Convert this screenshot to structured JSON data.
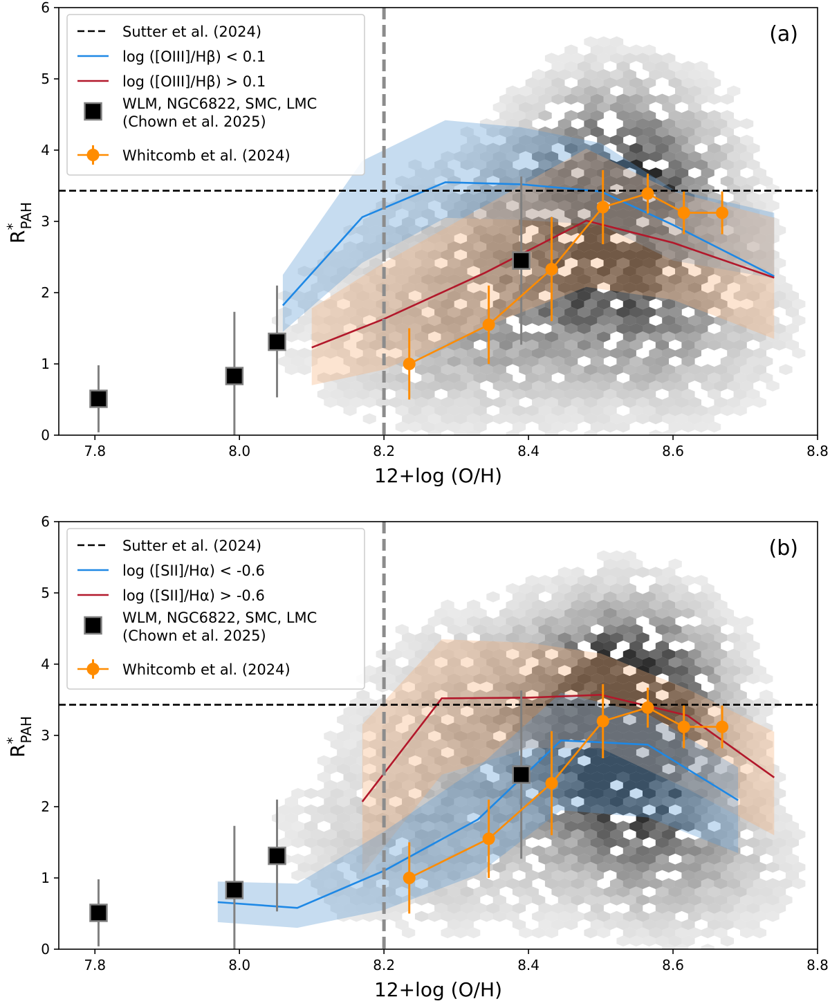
{
  "chart_data": [
    {
      "type": "line",
      "panel_label": "(a)",
      "xlabel": "12+log (O/H)",
      "ylabel_main": "R",
      "ylabel_sup": "*",
      "ylabel_sub": "PAH",
      "xlim": [
        7.75,
        8.8
      ],
      "ylim": [
        0,
        6
      ],
      "xticks": [
        "7.8",
        "8.0",
        "8.2",
        "8.4",
        "8.6",
        "8.8"
      ],
      "yticks": [
        "0",
        "1",
        "2",
        "3",
        "4",
        "5",
        "6"
      ],
      "grid": false,
      "legend_position": "top-left",
      "legend": [
        {
          "label": "Sutter et al. (2024)",
          "style": "dashed",
          "color": "#000000"
        },
        {
          "label": "log ([OIII]/Hβ) < 0.1",
          "style": "line",
          "color": "#1e88e5"
        },
        {
          "label": "log ([OIII]/Hβ) > 0.1",
          "style": "line",
          "color": "#b2182b"
        },
        {
          "label": "WLM, NGC6822, SMC, LMC",
          "label2": "(Chown et al. 2025)",
          "style": "square",
          "color": "#000000"
        },
        {
          "label": "Whitcomb et al. (2024)",
          "style": "errorbar",
          "color": "#ff8c00"
        }
      ],
      "reference_lines": {
        "horizontal_y": 3.43,
        "vertical_x": 8.2
      },
      "series": [
        {
          "name": "log ([OIII]/Hβ) < 0.1",
          "color": "#1e88e5",
          "band_color": "#5b9bd5",
          "x": [
            8.06,
            8.17,
            8.285,
            8.39,
            8.5,
            8.6,
            8.74
          ],
          "y": [
            1.82,
            3.06,
            3.55,
            3.52,
            3.42,
            2.95,
            2.23
          ],
          "band_lower": [
            1.45,
            2.42,
            3.05,
            3.02,
            2.95,
            2.45,
            2.2
          ],
          "band_upper": [
            2.25,
            3.85,
            4.42,
            4.32,
            4.1,
            3.45,
            3.12
          ]
        },
        {
          "name": "log ([OIII]/Hβ) > 0.1",
          "color": "#b2182b",
          "band_color": "#f6b27a",
          "x": [
            8.1,
            8.2,
            8.34,
            8.48,
            8.6,
            8.74
          ],
          "y": [
            1.23,
            1.63,
            2.28,
            3.01,
            2.7,
            2.21
          ],
          "band_lower": [
            0.7,
            0.92,
            1.52,
            2.08,
            1.9,
            1.35
          ],
          "band_upper": [
            1.78,
            2.42,
            3.22,
            4.02,
            3.42,
            3.05
          ]
        }
      ],
      "chown_points": {
        "x": [
          7.805,
          7.993,
          8.052,
          8.39
        ],
        "y": [
          0.51,
          0.83,
          1.31,
          2.45
        ],
        "err_low": [
          0.47,
          0.83,
          0.78,
          1.18
        ],
        "err_high": [
          0.47,
          0.9,
          0.79,
          1.18
        ]
      },
      "whitcomb_points": {
        "x": [
          8.235,
          8.345,
          8.432,
          8.503,
          8.565,
          8.615,
          8.668
        ],
        "y": [
          1.0,
          1.55,
          2.33,
          3.2,
          3.39,
          3.12,
          3.12
        ],
        "err_low": [
          0.5,
          0.55,
          0.73,
          0.52,
          0.28,
          0.3,
          0.3
        ],
        "err_high": [
          0.5,
          0.55,
          0.73,
          0.52,
          0.28,
          0.3,
          0.3
        ]
      }
    },
    {
      "type": "line",
      "panel_label": "(b)",
      "xlabel": "12+log (O/H)",
      "ylabel_main": "R",
      "ylabel_sup": "*",
      "ylabel_sub": "PAH",
      "xlim": [
        7.75,
        8.8
      ],
      "ylim": [
        0,
        6
      ],
      "xticks": [
        "7.8",
        "8.0",
        "8.2",
        "8.4",
        "8.6",
        "8.8"
      ],
      "yticks": [
        "0",
        "1",
        "2",
        "3",
        "4",
        "5",
        "6"
      ],
      "grid": false,
      "legend_position": "top-left",
      "legend": [
        {
          "label": "Sutter et al. (2024)",
          "style": "dashed",
          "color": "#000000"
        },
        {
          "label": "log ([SII]/Hα) < -0.6",
          "style": "line",
          "color": "#1e88e5"
        },
        {
          "label": "log ([SII]/Hα) > -0.6",
          "style": "line",
          "color": "#b2182b"
        },
        {
          "label": "WLM, NGC6822, SMC, LMC",
          "label2": "(Chown et al. 2025)",
          "style": "square",
          "color": "#000000"
        },
        {
          "label": "Whitcomb et al. (2024)",
          "style": "errorbar",
          "color": "#ff8c00"
        }
      ],
      "reference_lines": {
        "horizontal_y": 3.43,
        "vertical_x": 8.2
      },
      "series": [
        {
          "name": "log ([SII]/Hα) > -0.6",
          "color": "#b2182b",
          "band_color": "#f6b27a",
          "x": [
            8.17,
            8.28,
            8.4,
            8.5,
            8.62,
            8.74
          ],
          "y": [
            2.07,
            3.52,
            3.53,
            3.57,
            3.28,
            2.41
          ],
          "band_lower": [
            1.05,
            2.45,
            2.82,
            2.82,
            2.25,
            1.6
          ],
          "band_upper": [
            3.15,
            4.35,
            4.3,
            4.15,
            3.65,
            3.05
          ]
        },
        {
          "name": "log ([SII]/Hα) < -0.6",
          "color": "#1e88e5",
          "band_color": "#5b9bd5",
          "x": [
            7.97,
            8.08,
            8.2,
            8.33,
            8.445,
            8.565,
            8.69
          ],
          "y": [
            0.66,
            0.58,
            1.1,
            1.82,
            2.93,
            2.87,
            2.09
          ],
          "band_lower": [
            0.38,
            0.3,
            0.55,
            1.05,
            1.95,
            1.85,
            1.35
          ],
          "band_upper": [
            0.95,
            0.92,
            1.65,
            2.55,
            3.6,
            3.3,
            2.55
          ]
        }
      ],
      "chown_points": {
        "x": [
          7.805,
          7.993,
          8.052,
          8.39
        ],
        "y": [
          0.51,
          0.83,
          1.31,
          2.45
        ],
        "err_low": [
          0.47,
          0.83,
          0.78,
          1.18
        ],
        "err_high": [
          0.47,
          0.9,
          0.79,
          1.18
        ]
      },
      "whitcomb_points": {
        "x": [
          8.235,
          8.345,
          8.432,
          8.503,
          8.565,
          8.615,
          8.668
        ],
        "y": [
          1.0,
          1.55,
          2.33,
          3.2,
          3.39,
          3.12,
          3.12
        ],
        "err_low": [
          0.5,
          0.55,
          0.73,
          0.52,
          0.28,
          0.3,
          0.3
        ],
        "err_high": [
          0.5,
          0.55,
          0.73,
          0.52,
          0.28,
          0.3,
          0.3
        ]
      }
    }
  ]
}
